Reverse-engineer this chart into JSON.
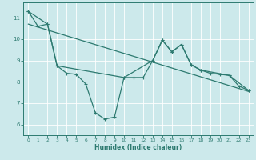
{
  "bg_color": "#cce9eb",
  "grid_color": "#b8d8da",
  "line_color": "#2d7a70",
  "xlabel": "Humidex (Indice chaleur)",
  "xlim": [
    -0.5,
    23.5
  ],
  "ylim": [
    5.5,
    11.7
  ],
  "yticks": [
    6,
    7,
    8,
    9,
    10,
    11
  ],
  "xticks": [
    0,
    1,
    2,
    3,
    4,
    5,
    6,
    7,
    8,
    9,
    10,
    11,
    12,
    13,
    14,
    15,
    16,
    17,
    18,
    19,
    20,
    21,
    22,
    23
  ],
  "line1_x": [
    0,
    1,
    2,
    3,
    4,
    5,
    6,
    7,
    8,
    9,
    10,
    11,
    12,
    13,
    14,
    15,
    16,
    17,
    18,
    19,
    20,
    21,
    22,
    23
  ],
  "line1_y": [
    11.3,
    10.6,
    10.7,
    8.75,
    8.4,
    8.35,
    7.9,
    6.55,
    6.25,
    6.35,
    8.2,
    8.2,
    8.2,
    9.0,
    9.95,
    9.4,
    9.75,
    8.8,
    8.55,
    8.4,
    8.35,
    8.3,
    7.8,
    7.6
  ],
  "line2_x": [
    0,
    2,
    3,
    10,
    13,
    14,
    15,
    16,
    17,
    18,
    21,
    23
  ],
  "line2_y": [
    11.3,
    10.7,
    8.75,
    8.2,
    9.0,
    9.95,
    9.4,
    9.75,
    8.8,
    8.55,
    8.3,
    7.6
  ],
  "trend_x": [
    0,
    23
  ],
  "trend_y": [
    10.7,
    7.55
  ]
}
